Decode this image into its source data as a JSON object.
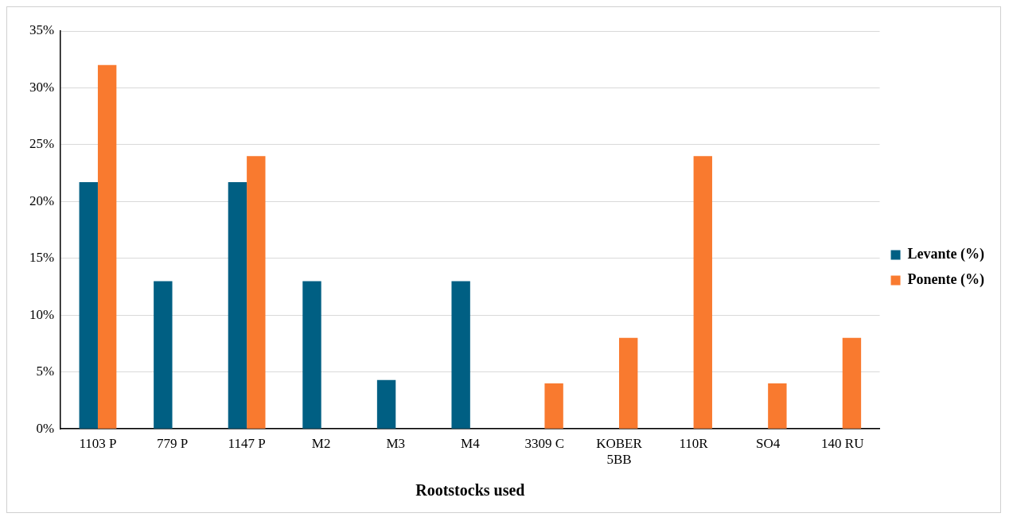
{
  "chart_data": {
    "type": "bar",
    "xlabel": "Rootstocks used",
    "categories": [
      "1103 P",
      "779 P",
      "1147 P",
      "M2",
      "M3",
      "M4",
      "3309 C",
      "KOBER 5BB",
      "110R",
      "SO4",
      "140 RU"
    ],
    "series": [
      {
        "name": "Levante (%)",
        "color": "#005f83",
        "values": [
          21.7,
          13.0,
          21.7,
          13.0,
          4.3,
          13.0,
          null,
          null,
          null,
          null,
          null
        ]
      },
      {
        "name": "Ponente (%)",
        "color": "#f97a2f",
        "values": [
          32,
          null,
          24,
          null,
          null,
          null,
          4,
          8,
          24,
          4,
          8
        ]
      }
    ],
    "ylim": [
      0,
      35
    ],
    "yticks": [
      {
        "value": 0,
        "label": "0%"
      },
      {
        "value": 5,
        "label": "5%"
      },
      {
        "value": 10,
        "label": "10%"
      },
      {
        "value": 15,
        "label": "15%"
      },
      {
        "value": 20,
        "label": "20%"
      },
      {
        "value": 25,
        "label": "25%"
      },
      {
        "value": 30,
        "label": "30%"
      },
      {
        "value": 35,
        "label": "35%"
      }
    ],
    "grid": "y",
    "legend": "right"
  }
}
